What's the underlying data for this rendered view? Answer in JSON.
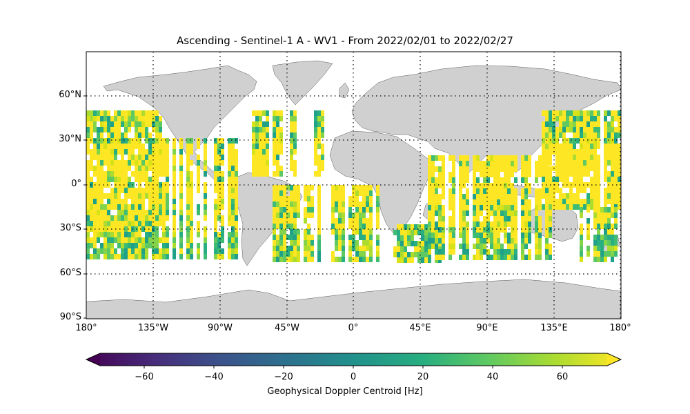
{
  "title": "Ascending - Sentinel-1 A - WV1 - From 2022/02/01 to 2022/02/27",
  "lat_ticks": [
    "60°N",
    "30°N",
    "0°",
    "30°S",
    "60°S",
    "90°S"
  ],
  "lon_ticks": [
    "180°",
    "135°W",
    "90°W",
    "45°W",
    "0°",
    "45°E",
    "90°E",
    "135°E",
    "180°"
  ],
  "colorbar": {
    "label": "Geophysical Doppler Centroid [Hz]",
    "ticks": [
      "−60",
      "−40",
      "−20",
      "0",
      "20",
      "40",
      "60"
    ],
    "range": [
      -75,
      75
    ],
    "colormap": "viridis",
    "extend": "both"
  },
  "colors": {
    "land": "#d0d0d0",
    "ocean": "#ffffff",
    "grid": "#000000"
  }
}
